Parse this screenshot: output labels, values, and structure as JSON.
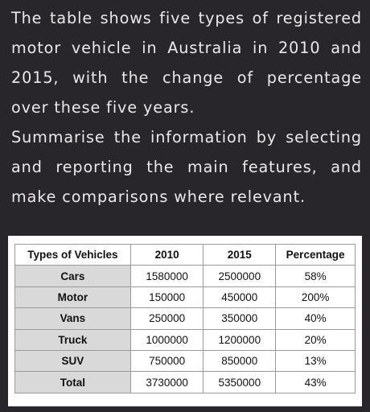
{
  "prompt": {
    "paragraph_1": "The table shows five types of registered motor vehicle in Australia in 2010 and 2015, with the change of percentage over these five years.",
    "paragraph_2": "Summarise the information by selecting and reporting the main features, and make comparisons where relevant."
  },
  "table": {
    "headers": [
      "Types of Vehicles",
      "2010",
      "2015",
      "Percentage"
    ],
    "rows": [
      {
        "type": "Cars",
        "y2010": "1580000",
        "y2015": "2500000",
        "percentage": "58%"
      },
      {
        "type": "Motor",
        "y2010": "150000",
        "y2015": "450000",
        "percentage": "200%"
      },
      {
        "type": "Vans",
        "y2010": "250000",
        "y2015": "350000",
        "percentage": "40%"
      },
      {
        "type": "Truck",
        "y2010": "1000000",
        "y2015": "1200000",
        "percentage": "20%"
      },
      {
        "type": "SUV",
        "y2010": "750000",
        "y2015": "850000",
        "percentage": "13%"
      },
      {
        "type": "Total",
        "y2010": "3730000",
        "y2015": "5350000",
        "percentage": "43%"
      }
    ]
  }
}
